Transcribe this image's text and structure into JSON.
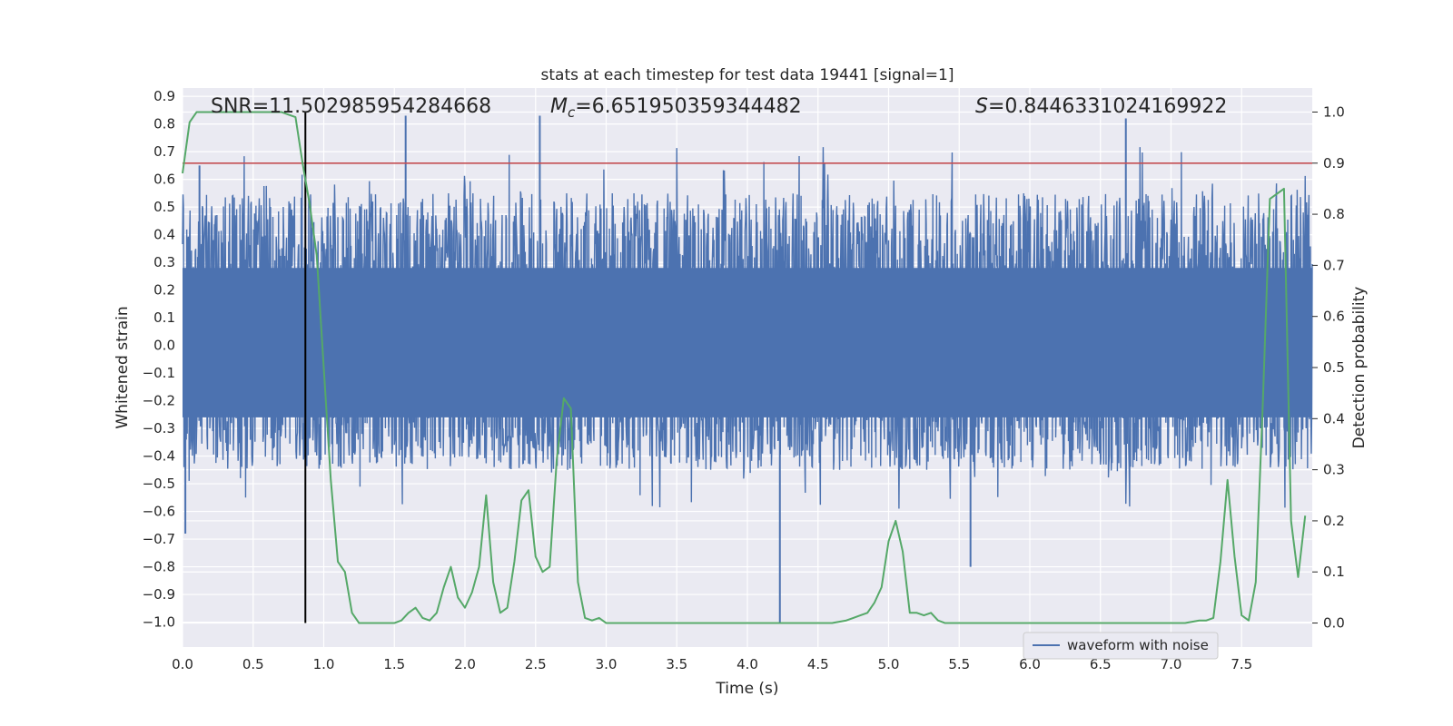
{
  "chart_data": {
    "type": "line",
    "title": "stats at each timestep for test data 19441 [signal=1]",
    "xlabel": "Time (s)",
    "ylabel": "Whitened strain",
    "y2label": "Detection probability",
    "xlim": [
      0.0,
      8.0
    ],
    "ylim": [
      -1.09,
      0.93
    ],
    "y2lim": [
      -0.047,
      1.047
    ],
    "xticks": [
      "0.0",
      "0.5",
      "1.0",
      "1.5",
      "2.0",
      "2.5",
      "3.0",
      "3.5",
      "4.0",
      "4.5",
      "5.0",
      "5.5",
      "6.0",
      "6.5",
      "7.0",
      "7.5"
    ],
    "yticks": [
      "0.9",
      "0.8",
      "0.7",
      "0.6",
      "0.5",
      "0.4",
      "0.3",
      "0.2",
      "0.1",
      "0.0",
      "-0.1",
      "-0.2",
      "-0.3",
      "-0.4",
      "-0.5",
      "-0.6",
      "-0.7",
      "-0.8",
      "-0.9",
      "-1.0"
    ],
    "y2ticks": [
      "0.0",
      "0.1",
      "0.2",
      "0.3",
      "0.4",
      "0.5",
      "0.6",
      "0.7",
      "0.8",
      "0.9",
      "1.0"
    ],
    "grid": true,
    "legend_position": "lower-right",
    "legend": [
      "waveform with noise"
    ],
    "annotations": {
      "snr": "SNR=11.502985954284668",
      "mc_symbol": "M",
      "mc_sub": "c",
      "mc_value": "=6.651950359344482",
      "s_symbol": "S",
      "s_value": "=0.8446331024169922"
    },
    "threshold": 0.9,
    "event_time": 0.87,
    "waveform": {
      "name": "waveform with noise",
      "color": "#4c72b0",
      "envelope_upper": 0.55,
      "envelope_lower": -0.45,
      "notable_peaks": [
        [
          0.12,
          0.65
        ],
        [
          1.58,
          0.83
        ],
        [
          2.53,
          0.83
        ],
        [
          6.68,
          0.82
        ],
        [
          4.23,
          -1.0
        ],
        [
          5.58,
          -0.8
        ],
        [
          0.02,
          -0.68
        ]
      ]
    },
    "series": [
      {
        "name": "detection probability",
        "color": "#55a868",
        "axis": "right",
        "x": [
          0.0,
          0.05,
          0.1,
          0.2,
          0.3,
          0.4,
          0.5,
          0.6,
          0.7,
          0.75,
          0.8,
          0.85,
          0.9,
          0.95,
          1.0,
          1.05,
          1.1,
          1.15,
          1.2,
          1.25,
          1.3,
          1.35,
          1.4,
          1.45,
          1.5,
          1.55,
          1.6,
          1.65,
          1.7,
          1.75,
          1.8,
          1.85,
          1.9,
          1.95,
          2.0,
          2.05,
          2.1,
          2.15,
          2.2,
          2.25,
          2.3,
          2.35,
          2.4,
          2.45,
          2.5,
          2.55,
          2.6,
          2.65,
          2.7,
          2.75,
          2.8,
          2.85,
          2.9,
          2.95,
          3.0,
          3.05,
          3.1,
          3.2,
          3.3,
          3.4,
          3.5,
          3.6,
          3.7,
          3.8,
          3.9,
          4.0,
          4.1,
          4.2,
          4.3,
          4.4,
          4.5,
          4.6,
          4.7,
          4.75,
          4.8,
          4.85,
          4.9,
          4.95,
          5.0,
          5.05,
          5.1,
          5.15,
          5.2,
          5.25,
          5.3,
          5.35,
          5.4,
          5.45,
          5.5,
          5.6,
          5.7,
          5.8,
          5.9,
          6.0,
          6.1,
          6.2,
          6.3,
          6.4,
          6.5,
          6.6,
          6.7,
          6.8,
          6.9,
          7.0,
          7.1,
          7.2,
          7.25,
          7.3,
          7.35,
          7.4,
          7.45,
          7.5,
          7.55,
          7.6,
          7.65,
          7.7,
          7.75,
          7.8,
          7.85,
          7.9,
          7.95
        ],
        "values": [
          0.88,
          0.98,
          1.0,
          1.0,
          1.0,
          1.0,
          1.0,
          1.0,
          1.0,
          0.995,
          0.99,
          0.9,
          0.82,
          0.72,
          0.5,
          0.28,
          0.12,
          0.1,
          0.02,
          0.0,
          0.0,
          0.0,
          0.0,
          0.0,
          0.0,
          0.005,
          0.02,
          0.03,
          0.01,
          0.005,
          0.02,
          0.07,
          0.11,
          0.05,
          0.03,
          0.06,
          0.11,
          0.25,
          0.08,
          0.02,
          0.03,
          0.12,
          0.24,
          0.26,
          0.13,
          0.1,
          0.11,
          0.32,
          0.44,
          0.42,
          0.08,
          0.01,
          0.005,
          0.01,
          0.0,
          0.0,
          0.0,
          0.0,
          0.0,
          0.0,
          0.0,
          0.0,
          0.0,
          0.0,
          0.0,
          0.0,
          0.0,
          0.0,
          0.0,
          0.0,
          0.0,
          0.0,
          0.005,
          0.01,
          0.015,
          0.02,
          0.04,
          0.07,
          0.16,
          0.2,
          0.14,
          0.02,
          0.02,
          0.015,
          0.02,
          0.005,
          0.0,
          0.0,
          0.0,
          0.0,
          0.0,
          0.0,
          0.0,
          0.0,
          0.0,
          0.0,
          0.0,
          0.0,
          0.0,
          0.0,
          0.0,
          0.0,
          0.0,
          0.0,
          0.0,
          0.005,
          0.005,
          0.01,
          0.12,
          0.28,
          0.13,
          0.015,
          0.005,
          0.08,
          0.43,
          0.83,
          0.84,
          0.85,
          0.2,
          0.09,
          0.21
        ]
      }
    ]
  }
}
